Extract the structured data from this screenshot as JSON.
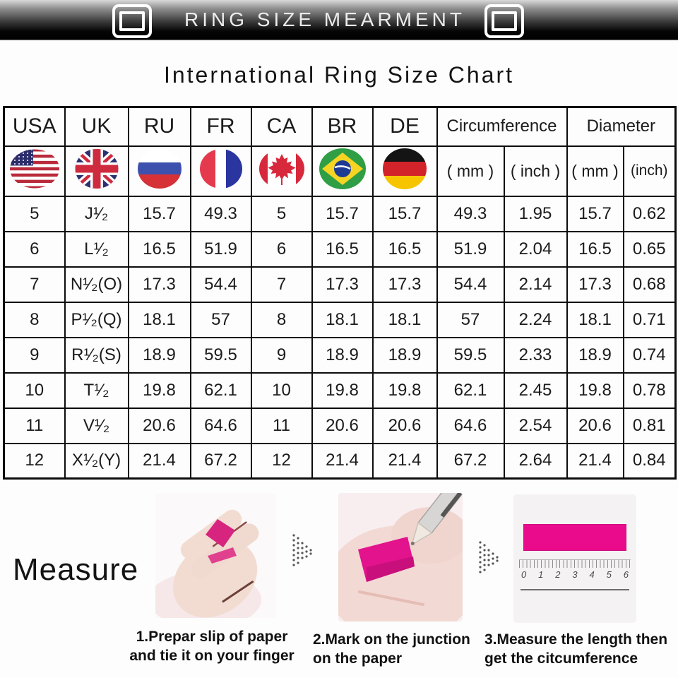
{
  "banner": {
    "title": "RING SIZE MEARMENT",
    "left_icon": "photo-frame-icon",
    "right_icon": "photo-frame-icon"
  },
  "page_title": "International Ring Size Chart",
  "table": {
    "country_columns": [
      "USA",
      "UK",
      "RU",
      "FR",
      "CA",
      "BR",
      "DE"
    ],
    "circumference_label": "Circumference",
    "diameter_label": "Diameter",
    "unit_headers": [
      "( mm )",
      "( inch )",
      "( mm )",
      "(inch)"
    ],
    "flags": [
      "usa-flag-icon",
      "uk-flag-icon",
      "russia-flag-icon",
      "france-flag-icon",
      "canada-flag-icon",
      "brazil-flag-icon",
      "germany-flag-icon"
    ],
    "rows": [
      [
        "5",
        "J¹⁄₂",
        "15.7",
        "49.3",
        "5",
        "15.7",
        "15.7",
        "49.3",
        "1.95",
        "15.7",
        "0.62"
      ],
      [
        "6",
        "L¹⁄₂",
        "16.5",
        "51.9",
        "6",
        "16.5",
        "16.5",
        "51.9",
        "2.04",
        "16.5",
        "0.65"
      ],
      [
        "7",
        "N¹⁄₂(O)",
        "17.3",
        "54.4",
        "7",
        "17.3",
        "17.3",
        "54.4",
        "2.14",
        "17.3",
        "0.68"
      ],
      [
        "8",
        "P¹⁄₂(Q)",
        "18.1",
        "57",
        "8",
        "18.1",
        "18.1",
        "57",
        "2.24",
        "18.1",
        "0.71"
      ],
      [
        "9",
        "R¹⁄₂(S)",
        "18.9",
        "59.5",
        "9",
        "18.9",
        "18.9",
        "59.5",
        "2.33",
        "18.9",
        "0.74"
      ],
      [
        "10",
        "T¹⁄₂",
        "19.8",
        "62.1",
        "10",
        "19.8",
        "19.8",
        "62.1",
        "2.45",
        "19.8",
        "0.78"
      ],
      [
        "11",
        "V¹⁄₂",
        "20.6",
        "64.6",
        "11",
        "20.6",
        "20.6",
        "64.6",
        "2.54",
        "20.6",
        "0.81"
      ],
      [
        "12",
        "X¹⁄₂(Y)",
        "21.4",
        "67.2",
        "12",
        "21.4",
        "21.4",
        "67.2",
        "2.64",
        "21.4",
        "0.84"
      ]
    ]
  },
  "measure": {
    "title": "Measure",
    "steps": [
      {
        "caption_line1": "1.Prepar slip of paper",
        "caption_line2": "and tie it on your finger"
      },
      {
        "caption_line1": "2.Mark on the junction",
        "caption_line2": "on the paper"
      },
      {
        "caption_line1": "3.Measure the length then",
        "caption_line2": "get the citcumference"
      }
    ],
    "ruler_numbers": [
      "0",
      "1",
      "2",
      "3",
      "4",
      "5",
      "6"
    ]
  },
  "colors": {
    "paper_pink": "#ea0b8c",
    "banner_black": "#000000",
    "table_border": "#0c0c0c"
  }
}
